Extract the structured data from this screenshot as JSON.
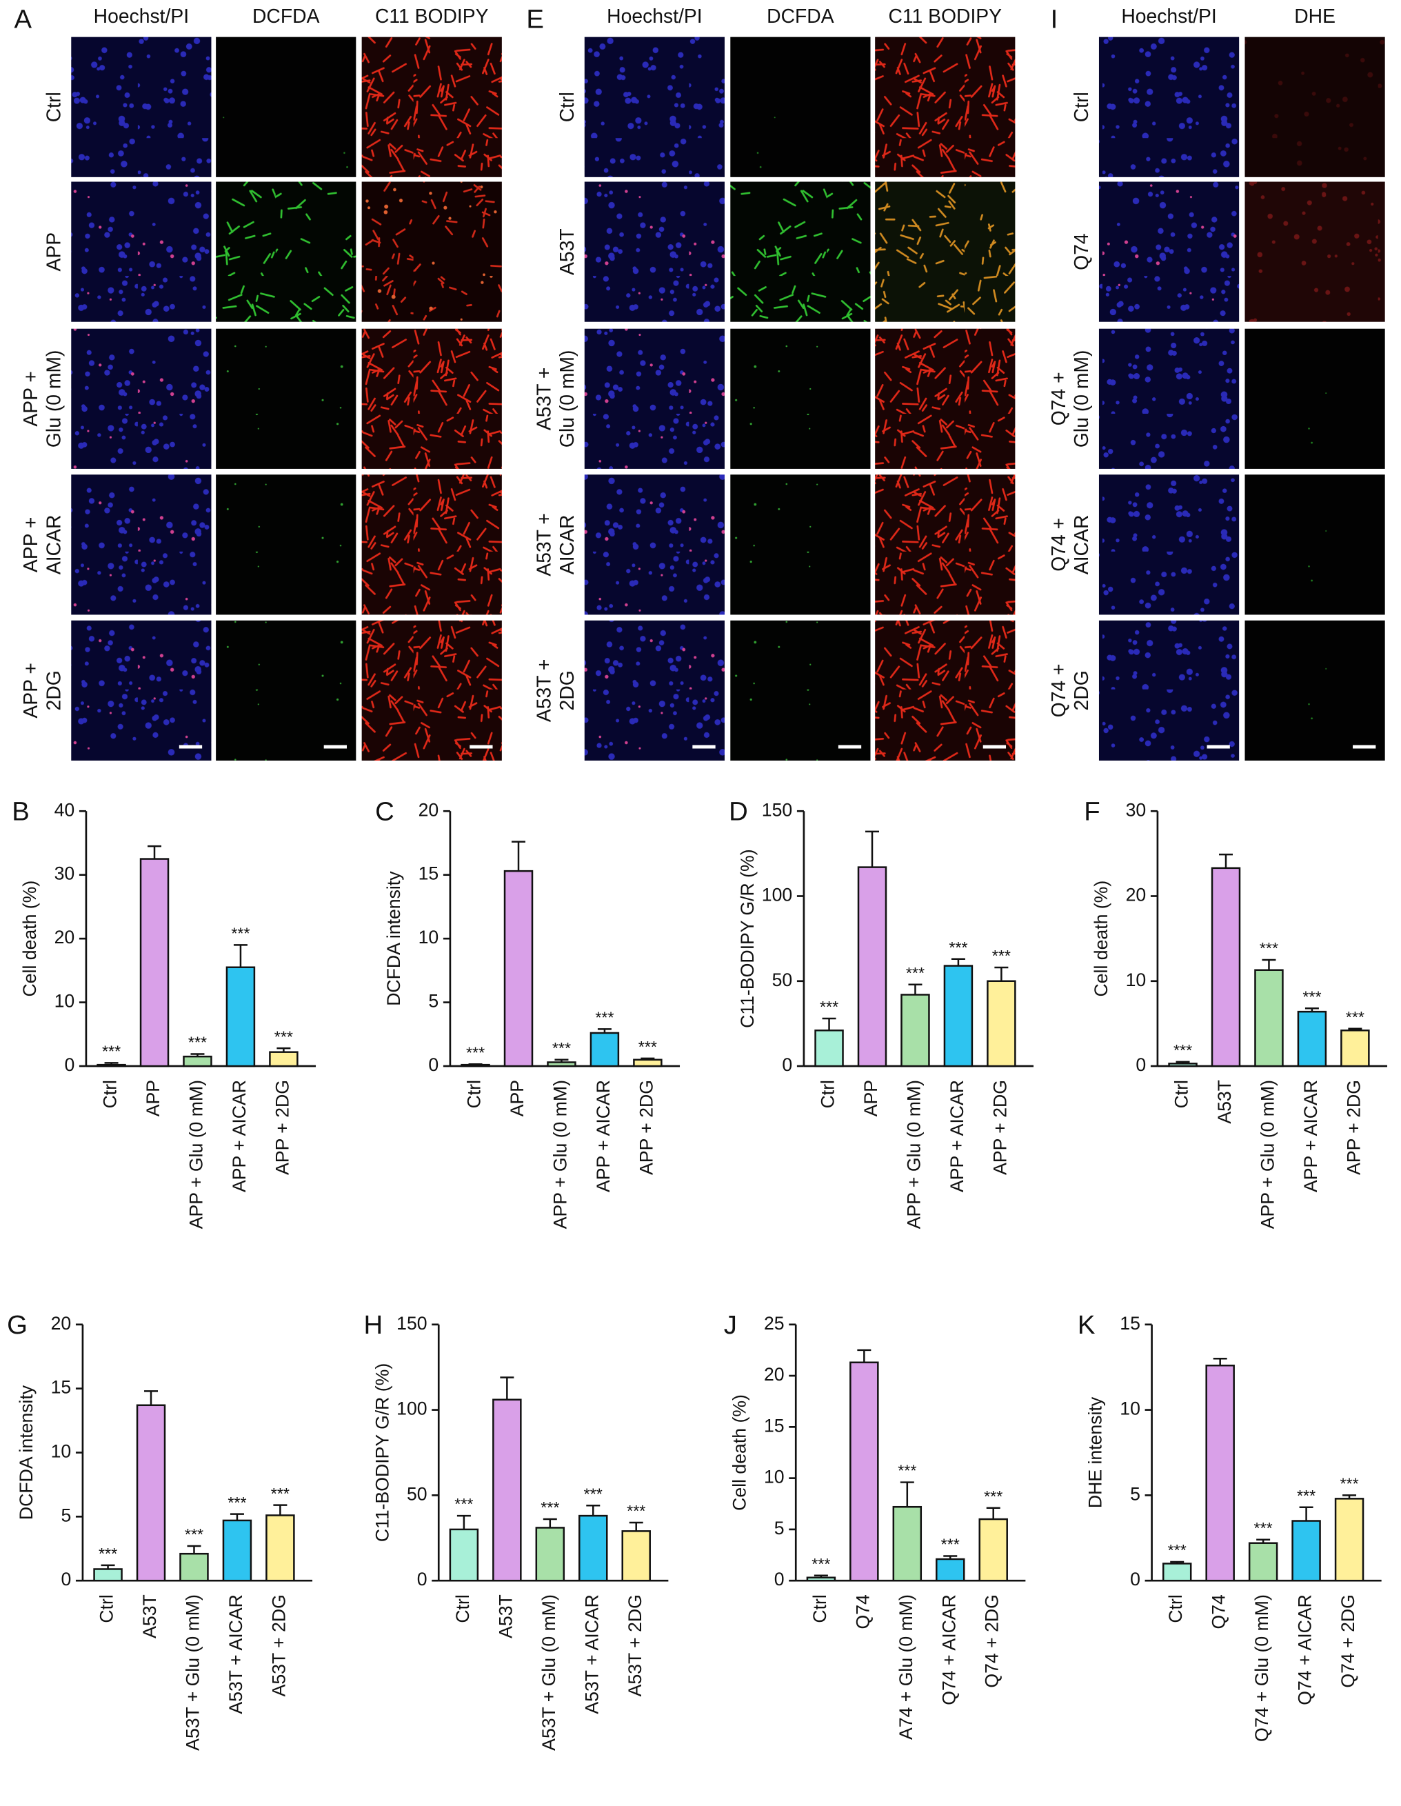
{
  "image_panels": [
    {
      "letter": "A",
      "columns": [
        "Hoechst/PI",
        "DCFDA",
        "C11 BODIPY"
      ],
      "rows": [
        [
          "Ctrl"
        ],
        [
          "APP"
        ],
        [
          "APP +",
          "Glu (0 mM)"
        ],
        [
          "APP +",
          "AICAR"
        ],
        [
          "APP +",
          "2DG"
        ]
      ]
    },
    {
      "letter": "E",
      "columns": [
        "Hoechst/PI",
        "DCFDA",
        "C11 BODIPY"
      ],
      "rows": [
        [
          "Ctrl"
        ],
        [
          "A53T"
        ],
        [
          "A53T +",
          "Glu (0 mM)"
        ],
        [
          "A53T +",
          "AICAR"
        ],
        [
          "A53T +",
          "2DG"
        ]
      ]
    },
    {
      "letter": "I",
      "columns": [
        "Hoechst/PI",
        "DHE"
      ],
      "rows": [
        [
          "Ctrl"
        ],
        [
          "Q74"
        ],
        [
          "Q74 +",
          "Glu (0 mM)"
        ],
        [
          "Q74 +",
          "AICAR"
        ],
        [
          "Q74 +",
          "2DG"
        ]
      ]
    }
  ],
  "chart_data": [
    {
      "type": "bar",
      "panel": "B",
      "ylabel": "Cell death (%)",
      "categories": [
        "Ctrl",
        "APP",
        "APP + Glu (0 mM)",
        "APP + AICAR",
        "APP + 2DG"
      ],
      "values": [
        0.2,
        32.5,
        1.5,
        15.5,
        2.2
      ],
      "errors": [
        0.3,
        2,
        0.4,
        3.5,
        0.6
      ],
      "annotations": [
        "***",
        null,
        "***",
        "***",
        "***"
      ],
      "colors": [
        "#a8f0d8",
        "#d9a0e8",
        "#a8e0a8",
        "#2ec4f0",
        "#fff09a"
      ],
      "ylim": [
        0,
        40
      ],
      "yticks": [
        0,
        10,
        20,
        30,
        40
      ]
    },
    {
      "type": "bar",
      "panel": "C",
      "ylabel": "DCFDA intensity",
      "categories": [
        "Ctrl",
        "APP",
        "APP + Glu (0 mM)",
        "APP + AICAR",
        "APP + 2DG"
      ],
      "values": [
        0.1,
        15.3,
        0.3,
        2.6,
        0.5
      ],
      "errors": [
        0.05,
        2.3,
        0.2,
        0.3,
        0.1
      ],
      "annotations": [
        "***",
        null,
        "***",
        "***",
        "***"
      ],
      "colors": [
        "#a8f0d8",
        "#d9a0e8",
        "#a8e0a8",
        "#2ec4f0",
        "#fff09a"
      ],
      "ylim": [
        0,
        20
      ],
      "yticks": [
        0,
        5,
        10,
        15,
        20
      ]
    },
    {
      "type": "bar",
      "panel": "D",
      "ylabel": "C11-BODIPY G/R (%)",
      "categories": [
        "Ctrl",
        "APP",
        "APP + Glu (0 mM)",
        "APP + AICAR",
        "APP + 2DG"
      ],
      "values": [
        21,
        117,
        42,
        59,
        50
      ],
      "errors": [
        7,
        21,
        6,
        4,
        8
      ],
      "annotations": [
        "***",
        null,
        "***",
        "***",
        "***"
      ],
      "colors": [
        "#a8f0d8",
        "#d9a0e8",
        "#a8e0a8",
        "#2ec4f0",
        "#fff09a"
      ],
      "ylim": [
        0,
        150
      ],
      "yticks": [
        0,
        50,
        100,
        150
      ]
    },
    {
      "type": "bar",
      "panel": "F",
      "ylabel": "Cell death (%)",
      "categories": [
        "Ctrl",
        "A53T",
        "APP + Glu (0 mM)",
        "APP + AICAR",
        "APP + 2DG"
      ],
      "values": [
        0.3,
        23.3,
        11.3,
        6.4,
        4.2
      ],
      "errors": [
        0.2,
        1.6,
        1.2,
        0.4,
        0.2
      ],
      "annotations": [
        "***",
        null,
        "***",
        "***",
        "***"
      ],
      "colors": [
        "#a8f0d8",
        "#d9a0e8",
        "#a8e0a8",
        "#2ec4f0",
        "#fff09a"
      ],
      "ylim": [
        0,
        30
      ],
      "yticks": [
        0,
        10,
        20,
        30
      ]
    },
    {
      "type": "bar",
      "panel": "G",
      "ylabel": "DCFDA intensity",
      "categories": [
        "Ctrl",
        "A53T",
        "A53T + Glu (0 mM)",
        "A53T + AICAR",
        "A53T + 2DG"
      ],
      "values": [
        0.9,
        13.7,
        2.1,
        4.7,
        5.1
      ],
      "errors": [
        0.3,
        1.1,
        0.6,
        0.5,
        0.8
      ],
      "annotations": [
        "***",
        null,
        "***",
        "***",
        "***"
      ],
      "colors": [
        "#a8f0d8",
        "#d9a0e8",
        "#a8e0a8",
        "#2ec4f0",
        "#fff09a"
      ],
      "ylim": [
        0,
        20
      ],
      "yticks": [
        0,
        5,
        10,
        15,
        20
      ]
    },
    {
      "type": "bar",
      "panel": "H",
      "ylabel": "C11-BODIPY G/R (%)",
      "categories": [
        "Ctrl",
        "A53T",
        "A53T + Glu (0 mM)",
        "A53T + AICAR",
        "A53T + 2DG"
      ],
      "values": [
        30,
        106,
        31,
        38,
        29
      ],
      "errors": [
        8,
        13,
        5,
        6,
        5
      ],
      "annotations": [
        "***",
        null,
        "***",
        "***",
        "***"
      ],
      "colors": [
        "#a8f0d8",
        "#d9a0e8",
        "#a8e0a8",
        "#2ec4f0",
        "#fff09a"
      ],
      "ylim": [
        0,
        150
      ],
      "yticks": [
        0,
        50,
        100,
        150
      ]
    },
    {
      "type": "bar",
      "panel": "J",
      "ylabel": "Cell death (%)",
      "categories": [
        "Ctrl",
        "Q74",
        "A74 + Glu (0 mM)",
        "Q74 + AICAR",
        "Q74 + 2DG"
      ],
      "values": [
        0.3,
        21.3,
        7.2,
        2.1,
        6.0
      ],
      "errors": [
        0.2,
        1.2,
        2.4,
        0.3,
        1.1
      ],
      "annotations": [
        "***",
        null,
        "***",
        "***",
        "***"
      ],
      "colors": [
        "#a8f0d8",
        "#d9a0e8",
        "#a8e0a8",
        "#2ec4f0",
        "#fff09a"
      ],
      "ylim": [
        0,
        25
      ],
      "yticks": [
        0,
        5,
        10,
        15,
        20,
        25
      ]
    },
    {
      "type": "bar",
      "panel": "K",
      "ylabel": "DHE intensity",
      "categories": [
        "Ctrl",
        "Q74",
        "Q74 + Glu (0 mM)",
        "Q74 + AICAR",
        "Q74 + 2DG"
      ],
      "values": [
        1.0,
        12.6,
        2.2,
        3.5,
        4.8
      ],
      "errors": [
        0.1,
        0.4,
        0.2,
        0.8,
        0.2
      ],
      "annotations": [
        "***",
        null,
        "***",
        "***",
        "***"
      ],
      "colors": [
        "#a8f0d8",
        "#d9a0e8",
        "#a8e0a8",
        "#2ec4f0",
        "#fff09a"
      ],
      "ylim": [
        0,
        15
      ],
      "yticks": [
        0,
        5,
        10,
        15
      ]
    }
  ]
}
